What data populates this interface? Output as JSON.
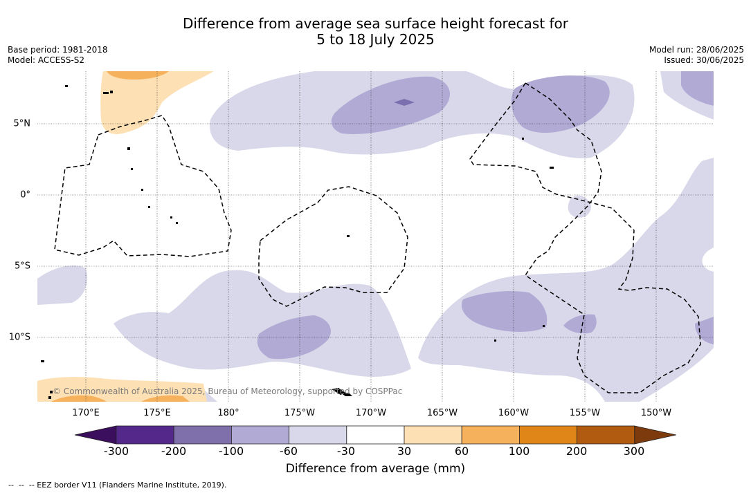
{
  "title": {
    "line1": "Difference from average sea surface height forecast for",
    "line2": "5 to 18 July 2025"
  },
  "meta_left": {
    "base_period": "Base period: 1981-2018",
    "model": "Model: ACCESS-S2"
  },
  "meta_right": {
    "model_run": "Model run: 28/06/2025",
    "issued": "Issued: 30/06/2025"
  },
  "map": {
    "lon_labels": [
      "170°E",
      "175°E",
      "180°",
      "175°W",
      "170°W",
      "165°W",
      "160°W",
      "155°W",
      "150°W"
    ],
    "lat_labels": [
      "5°N",
      "0°",
      "5°S",
      "10°S"
    ],
    "copyright": "© Commonwealth of Australia 2025, Bureau of Meteorology, supported by COSPPac",
    "colors": {
      "neg_light": "#d8d8ea",
      "neg_mid": "#b0aad4",
      "neg_dark": "#7c6fb0",
      "pos_light": "#fde0b4",
      "pos_mid": "#f6b15c"
    }
  },
  "colorbar": {
    "ticks": [
      "-300",
      "-200",
      "-100",
      "-60",
      "-30",
      "30",
      "60",
      "100",
      "200",
      "300"
    ],
    "colors": [
      "#3c0f5e",
      "#54288a",
      "#7f6fab",
      "#b0aad4",
      "#d8d8ea",
      "#ffffff",
      "#fde0b4",
      "#f6b15c",
      "#e08518",
      "#b05b10",
      "#7d3a0d"
    ],
    "label": "Difference from average (mm)"
  },
  "footer": "--  --  -- EEZ border V11 (Flanders Marine Institute, 2019)."
}
